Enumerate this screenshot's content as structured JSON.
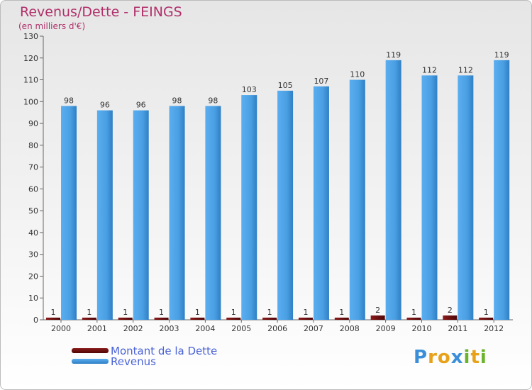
{
  "chart_data": {
    "type": "bar",
    "title": "Revenus/Dette - FEINGS",
    "subtitle": "(en milliers d'€)",
    "categories": [
      "2000",
      "2001",
      "2002",
      "2003",
      "2004",
      "2005",
      "2006",
      "2007",
      "2008",
      "2009",
      "2010",
      "2011",
      "2012"
    ],
    "series": [
      {
        "name": "Montant de la Dette",
        "color": "#6b0e0e",
        "values": [
          1,
          1,
          1,
          1,
          1,
          1,
          1,
          1,
          1,
          2,
          1,
          2,
          1
        ]
      },
      {
        "name": "Revenus",
        "color": "#4ea3e6",
        "values": [
          98,
          96,
          96,
          98,
          98,
          103,
          105,
          107,
          110,
          119,
          112,
          112,
          119
        ]
      }
    ],
    "ylim": [
      0,
      130
    ],
    "yticks": [
      0,
      10,
      20,
      30,
      40,
      50,
      60,
      70,
      80,
      90,
      100,
      110,
      120,
      130
    ],
    "grid": false,
    "legend": "bottom-left"
  },
  "logo": {
    "letters": [
      "P",
      "r",
      "o",
      "x",
      "i",
      "t",
      "i"
    ]
  }
}
